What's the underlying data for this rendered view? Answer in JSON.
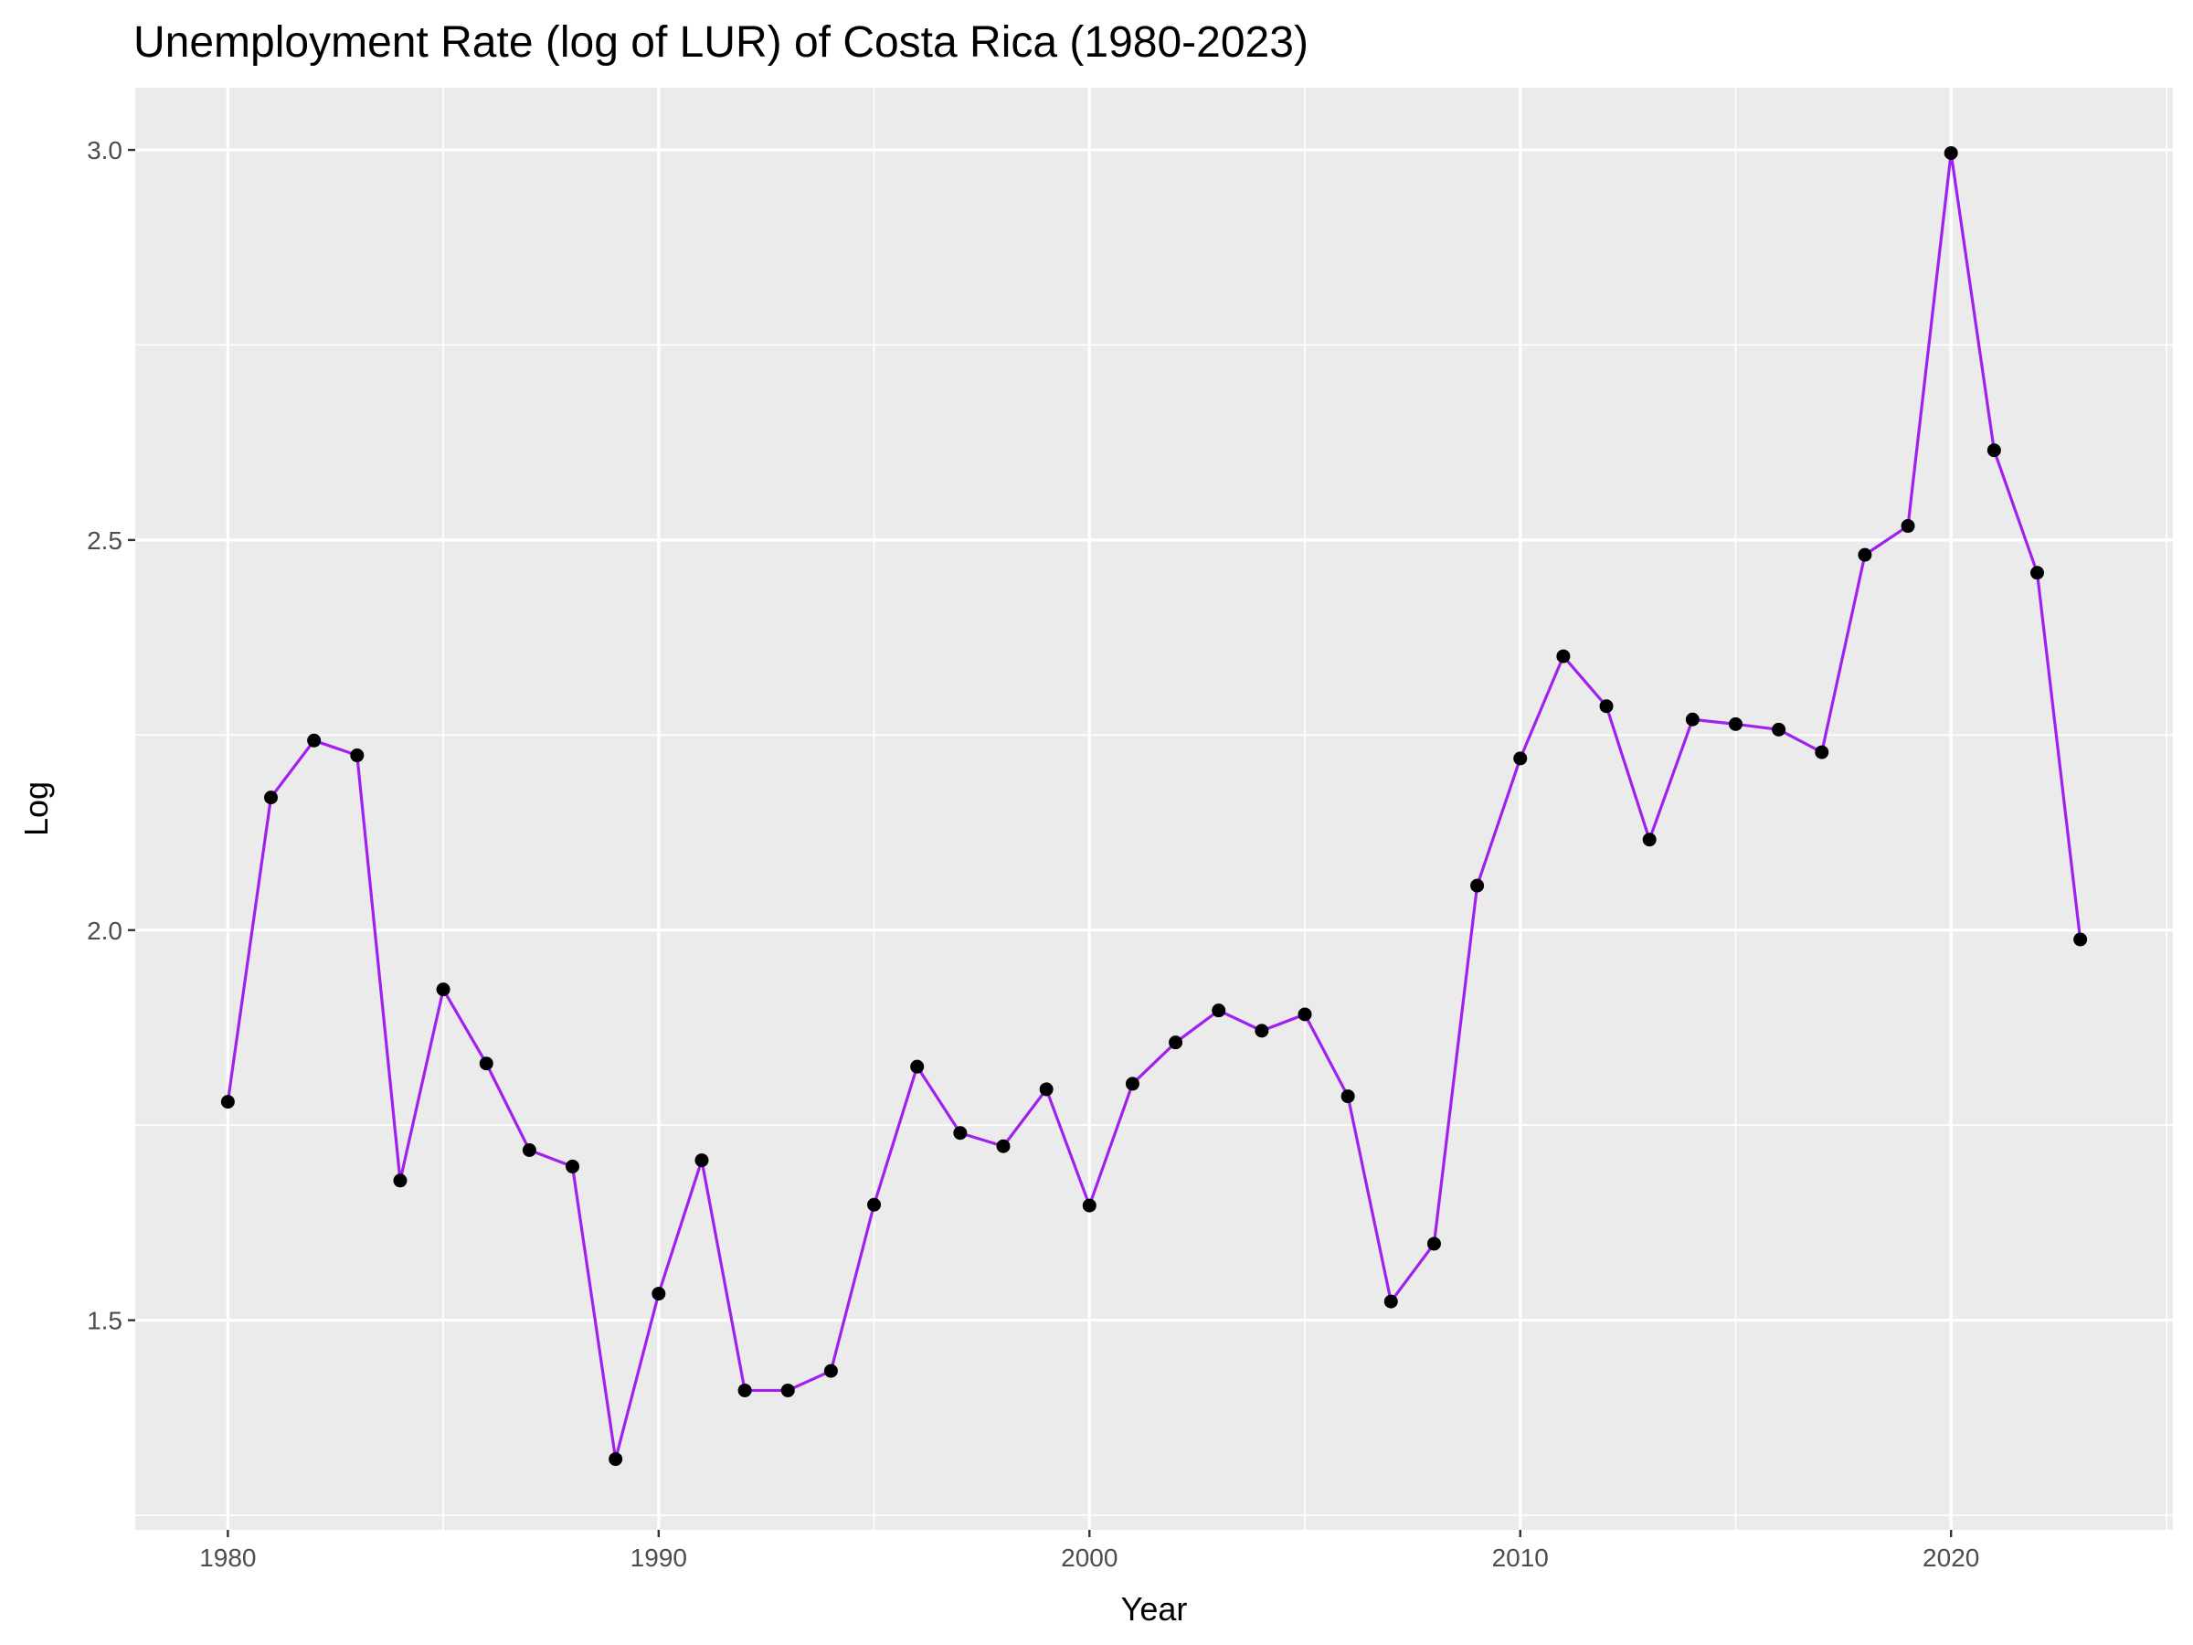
{
  "chart_data": {
    "type": "line",
    "title": "Unemployment Rate (log of LUR) of Costa Rica (1980-2023)",
    "xlabel": "Year",
    "ylabel": "Log",
    "xlim": [
      1977.85,
      2025.15
    ],
    "ylim": [
      1.2313,
      3.0797
    ],
    "x_ticks": [
      1980,
      1990,
      2000,
      2010,
      2020
    ],
    "y_ticks": [
      1.5,
      2.0,
      2.5,
      3.0
    ],
    "y_tick_labels": [
      "1.5",
      "2.0",
      "2.5",
      "3.0"
    ],
    "grid": true,
    "colors": {
      "panel": "#ebebeb",
      "grid": "#ffffff",
      "line": "#a020f0",
      "point": "#000000"
    },
    "series": [
      {
        "x": [
          1980,
          1981,
          1982,
          1983,
          1984,
          1985,
          1986,
          1987,
          1988,
          1989,
          1990,
          1991,
          1992,
          1993,
          1994,
          1995,
          1996,
          1997,
          1998,
          1999,
          2000,
          2001,
          2002,
          2003,
          2004,
          2005,
          2006,
          2007,
          2008,
          2009,
          2010,
          2011,
          2012,
          2013,
          2014,
          2015,
          2016,
          2017,
          2018,
          2019,
          2020,
          2021,
          2022,
          2023
        ],
        "values": [
          1.78,
          2.17,
          2.243,
          2.224,
          1.679,
          1.924,
          1.829,
          1.718,
          1.697,
          1.322,
          1.534,
          1.705,
          1.41,
          1.41,
          1.435,
          1.648,
          1.825,
          1.74,
          1.723,
          1.796,
          1.647,
          1.803,
          1.856,
          1.897,
          1.871,
          1.892,
          1.787,
          1.524,
          1.598,
          2.057,
          2.22,
          2.351,
          2.287,
          2.116,
          2.27,
          2.264,
          2.257,
          2.228,
          2.481,
          2.518,
          2.996,
          2.615,
          2.458,
          1.988
        ]
      }
    ]
  }
}
